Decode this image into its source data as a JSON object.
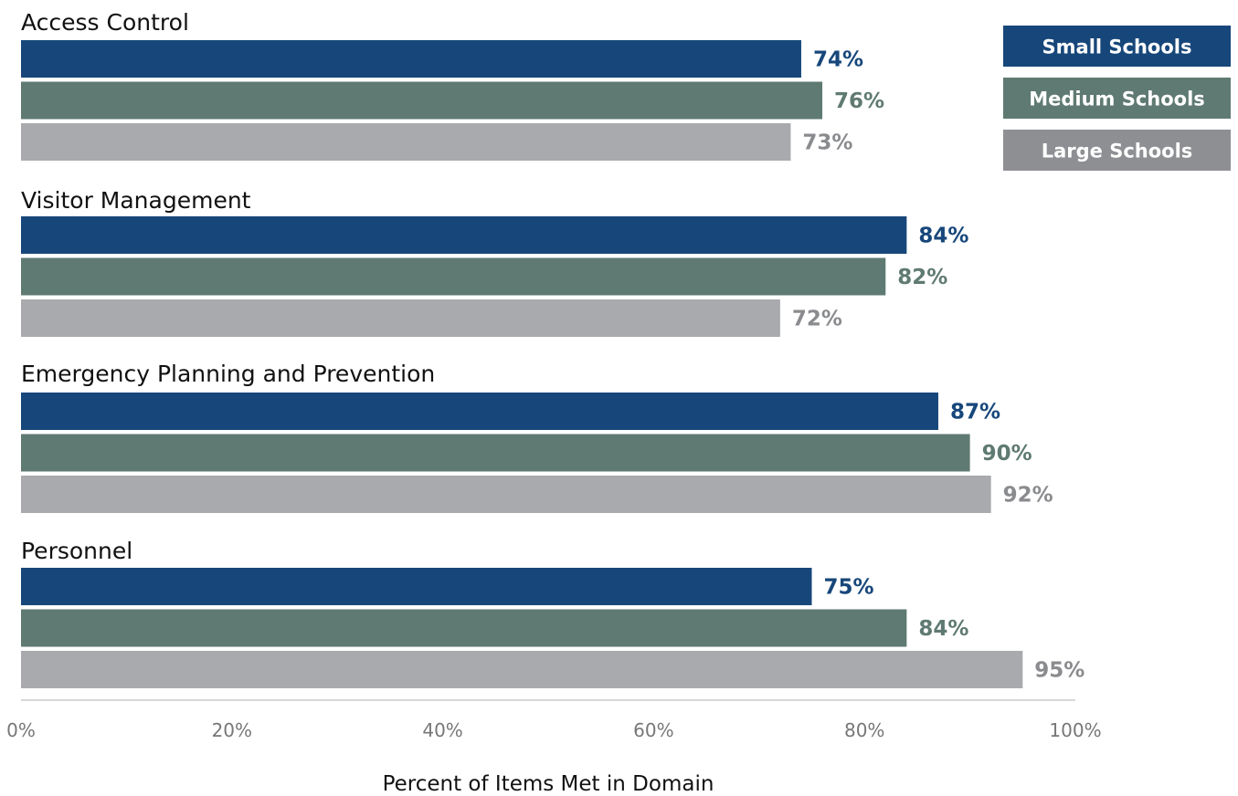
{
  "chart_data": {
    "type": "bar",
    "orientation": "horizontal",
    "categories": [
      "Access Control",
      "Visitor Management",
      "Emergency Planning and Prevention",
      "Personnel"
    ],
    "series": [
      {
        "name": "Small Schools",
        "color": "#17477a",
        "values": [
          74,
          84,
          87,
          75
        ],
        "labels": [
          "74%",
          "84%",
          "87%",
          "75%"
        ]
      },
      {
        "name": "Medium Schools",
        "color": "#5f7a72",
        "values": [
          76,
          82,
          90,
          84
        ],
        "labels": [
          "76%",
          "82%",
          "90%",
          "84%"
        ]
      },
      {
        "name": "Large Schools",
        "color": "#a9aaad",
        "label_color": "#8a8b8e",
        "legend_color": "#8e8f93",
        "values": [
          73,
          72,
          92,
          95
        ],
        "labels": [
          "73%",
          "72%",
          "92%",
          "95%"
        ]
      }
    ],
    "xlim": [
      0,
      100
    ],
    "xticks": [
      "0%",
      "20%",
      "40%",
      "60%",
      "80%",
      "100%"
    ],
    "xlabel": "Percent of Items Met in Domain",
    "legend_position": "top-right",
    "grid": false
  }
}
